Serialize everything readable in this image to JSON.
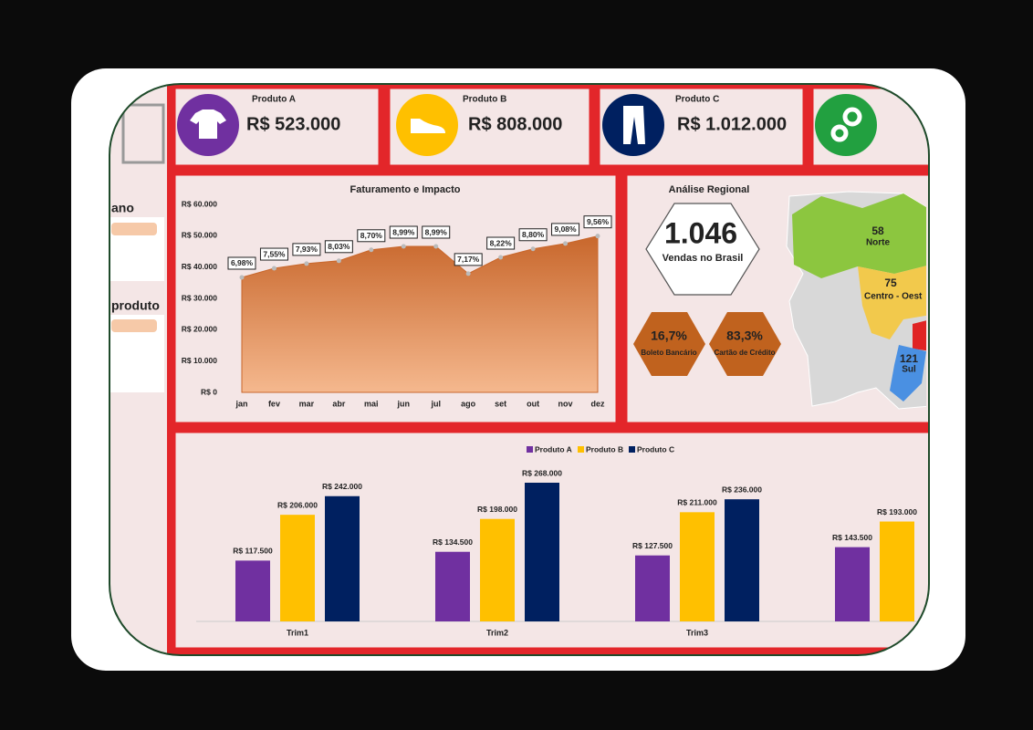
{
  "sidebar": {
    "items": [
      "ano",
      "produto"
    ]
  },
  "kpis": [
    {
      "label": "Produto A",
      "value": "R$ 523.000"
    },
    {
      "label": "Produto B",
      "value": "R$ 808.000"
    },
    {
      "label": "Produto C",
      "value": "R$ 1.012.000"
    }
  ],
  "regional": {
    "title": "Análise Regional",
    "total": "1.046",
    "total_label": "Vendas no Brasil",
    "payments": [
      {
        "value": "16,7%",
        "label": "Boleto Bancário"
      },
      {
        "value": "83,3%",
        "label": "Cartão de Crédito"
      }
    ],
    "regions": [
      {
        "value": "58",
        "name": "Norte"
      },
      {
        "value": "75",
        "name": "Centro - Oest"
      },
      {
        "value": "121",
        "name": "Sul"
      }
    ]
  },
  "chart_data": [
    {
      "type": "area",
      "title": "Faturamento e Impacto",
      "categories": [
        "jan",
        "fev",
        "mar",
        "abr",
        "mai",
        "jun",
        "jul",
        "ago",
        "set",
        "out",
        "nov",
        "dez"
      ],
      "values": [
        36700,
        39600,
        41100,
        42000,
        45500,
        46600,
        46600,
        37900,
        43100,
        45800,
        47500,
        49900
      ],
      "labels": [
        "6,98%",
        "7,55%",
        "7,93%",
        "8,03%",
        "8,70%",
        "8,99%",
        "8,99%",
        "7,17%",
        "8,22%",
        "8,80%",
        "9,08%",
        "9,56%"
      ],
      "color": "#c8672c",
      "ylim": [
        0,
        60000
      ],
      "yticks": [
        {
          "value": 0,
          "label": "R$ 0"
        },
        {
          "value": 10000,
          "label": "R$ 10.000"
        },
        {
          "value": 20000,
          "label": "R$ 20.000"
        },
        {
          "value": 30000,
          "label": "R$ 30.000"
        },
        {
          "value": 40000,
          "label": "R$ 40.000"
        },
        {
          "value": 50000,
          "label": "R$ 50.000"
        },
        {
          "value": 60000,
          "label": "R$ 60.000"
        }
      ]
    },
    {
      "type": "bar",
      "categories": [
        "Trim1",
        "Trim2",
        "Trim3",
        null
      ],
      "series": [
        {
          "name": "Produto A",
          "color": "#7030a0",
          "values": [
            117500,
            134500,
            127500,
            143500
          ],
          "value_labels": [
            "R$ 117.500",
            "R$ 134.500",
            "R$ 127.500",
            "R$ 143.500"
          ]
        },
        {
          "name": "Produto B",
          "color": "#ffc000",
          "values": [
            206000,
            198000,
            211000,
            193000
          ],
          "value_labels": [
            "R$ 206.000",
            "R$ 198.000",
            "R$ 211.000",
            "R$ 193.000"
          ]
        },
        {
          "name": "Produto C",
          "color": "#002060",
          "values": [
            242000,
            268000,
            236000,
            null
          ],
          "value_labels": [
            "R$ 242.000",
            "R$ 268.000",
            "R$ 236.000",
            null
          ]
        }
      ],
      "legend": "top"
    }
  ]
}
